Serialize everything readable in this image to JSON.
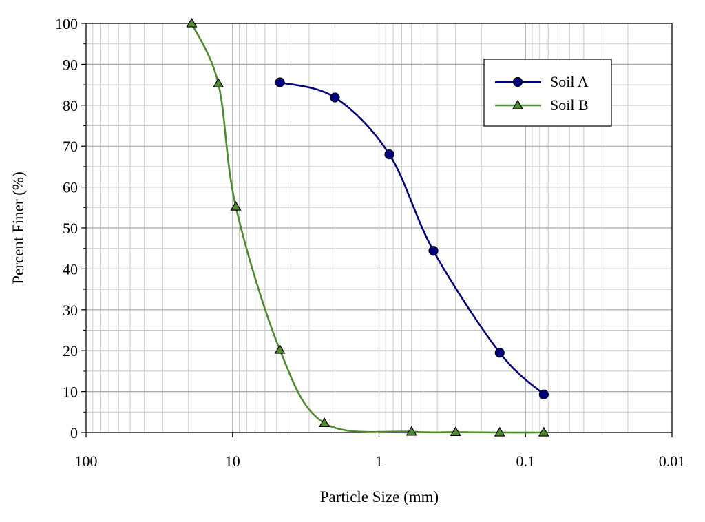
{
  "chart_data": {
    "type": "line",
    "xlabel": "Particle Size (mm)",
    "ylabel": "Percent Finer (%)",
    "x_scale": "log",
    "x_reversed": true,
    "xlim": [
      100,
      0.01
    ],
    "ylim": [
      0,
      100
    ],
    "x_ticks": [
      100,
      10,
      1,
      0.1,
      0.01
    ],
    "x_tick_labels": [
      "100",
      "10",
      "1",
      "0.1",
      "0.01"
    ],
    "y_ticks": [
      0,
      10,
      20,
      30,
      40,
      50,
      60,
      70,
      80,
      90,
      100
    ],
    "y_tick_labels": [
      "0",
      "10",
      "20",
      "30",
      "40",
      "50",
      "60",
      "70",
      "80",
      "90",
      "100"
    ],
    "grid": true,
    "legend_position": "top-right",
    "series": [
      {
        "name": "Soil A",
        "color": "#000080",
        "marker": "circle",
        "x": [
          4.75,
          2.0,
          0.85,
          0.425,
          0.15,
          0.075
        ],
        "y": [
          85.6,
          81.9,
          68.0,
          44.4,
          19.5,
          9.3
        ]
      },
      {
        "name": "Soil B",
        "color": "#4d8a2a",
        "marker": "triangle",
        "x": [
          19.0,
          12.5,
          9.5,
          4.75,
          2.36,
          0.6,
          0.3,
          0.15,
          0.075
        ],
        "y": [
          100,
          85.3,
          55.2,
          20.2,
          2.3,
          0.2,
          0.1,
          0.0,
          0.0
        ]
      }
    ]
  }
}
